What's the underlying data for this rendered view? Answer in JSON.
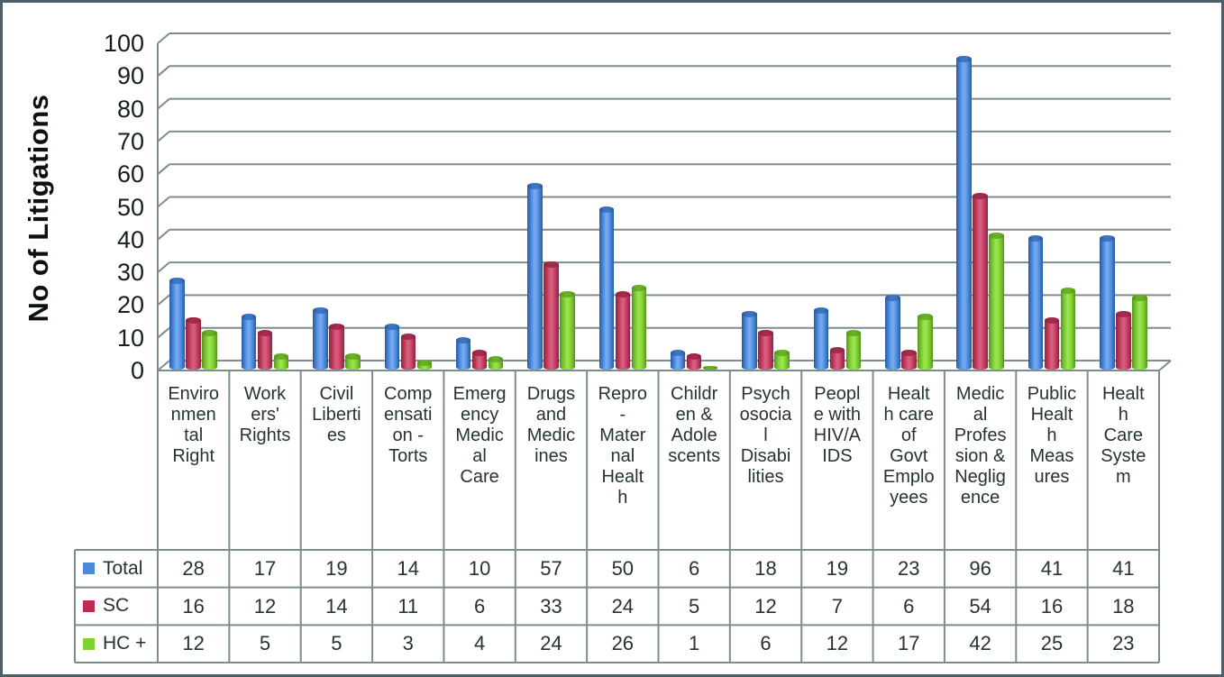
{
  "chart_data": {
    "type": "bar",
    "style": "3d-cylinder-columns",
    "title": "",
    "ylabel": "No of Litigations",
    "xlabel": "",
    "ylim": [
      0,
      100
    ],
    "ytick_step": 10,
    "yticks": [
      100,
      90,
      80,
      70,
      60,
      50,
      40,
      30,
      20,
      10,
      0
    ],
    "grid": true,
    "legend_position": "table-row-headers-left",
    "categories": [
      "Environmental Right",
      "Workers' Rights",
      "Civil Liberties",
      "Compensation - Torts",
      "Emergency Medical Care",
      "Drugs and Medicines",
      "Repro-Maternal Health",
      "Children & Adolescents",
      "Psychosocial Disabilities",
      "People with HIV/AIDS",
      "Health care of Govt Employees",
      "Medical Profession & Negligence",
      "Public Health Measures",
      "Health Care System"
    ],
    "category_label_lines": [
      "Enviro\nnmen\ntal\nRight",
      "Work\ners'\nRights",
      "Civil\nLiberti\nes",
      "Comp\nensati\non -\nTorts",
      "Emerg\nency\nMedic\nal\nCare",
      "Drugs\nand\nMedic\nines",
      "Repro\n-\nMater\nnal\nHealt\nh",
      "Childr\nen &\nAdole\nscents",
      "Psych\nosocia\nl\nDisabi\nlities",
      "Peopl\ne with\nHIV/A\nIDS",
      "Healt\nh care\nof\nGovt\nEmplo\nyees",
      "Medic\nal\nProfes\nsion &\nNeglig\nence",
      "Public\nHealt\nh\nMeas\nures",
      "Healt\nh\nCare\nSyste\nm"
    ],
    "series": [
      {
        "name": "Total",
        "values": [
          28,
          17,
          19,
          14,
          10,
          57,
          50,
          6,
          18,
          19,
          23,
          96,
          41,
          41
        ],
        "swatch": "#4a8ad9",
        "body": {
          "dark": "#27599c",
          "mid": "#4a87d9",
          "light": "#72a9ef",
          "cap": "#3d74c4"
        }
      },
      {
        "name": "SC",
        "values": [
          16,
          12,
          14,
          11,
          6,
          33,
          24,
          5,
          12,
          7,
          6,
          54,
          16,
          18
        ],
        "swatch": "#c02a50",
        "body": {
          "dark": "#8c2340",
          "mid": "#c13a5d",
          "light": "#d65e7e",
          "cap": "#a52a4c"
        }
      },
      {
        "name": "HC +",
        "values": [
          12,
          5,
          5,
          3,
          4,
          24,
          26,
          1,
          6,
          12,
          17,
          42,
          25,
          23
        ],
        "swatch": "#7ed32f",
        "body": {
          "dark": "#55941b",
          "mid": "#7cc832",
          "light": "#99e34c",
          "cap": "#68b024"
        }
      }
    ]
  },
  "colors": {
    "grid_line": "#7c8e8c",
    "figure_border": "#4e5c66",
    "label_text": "#263333",
    "tick_text": "#161e1e",
    "background": "#ffffff"
  }
}
